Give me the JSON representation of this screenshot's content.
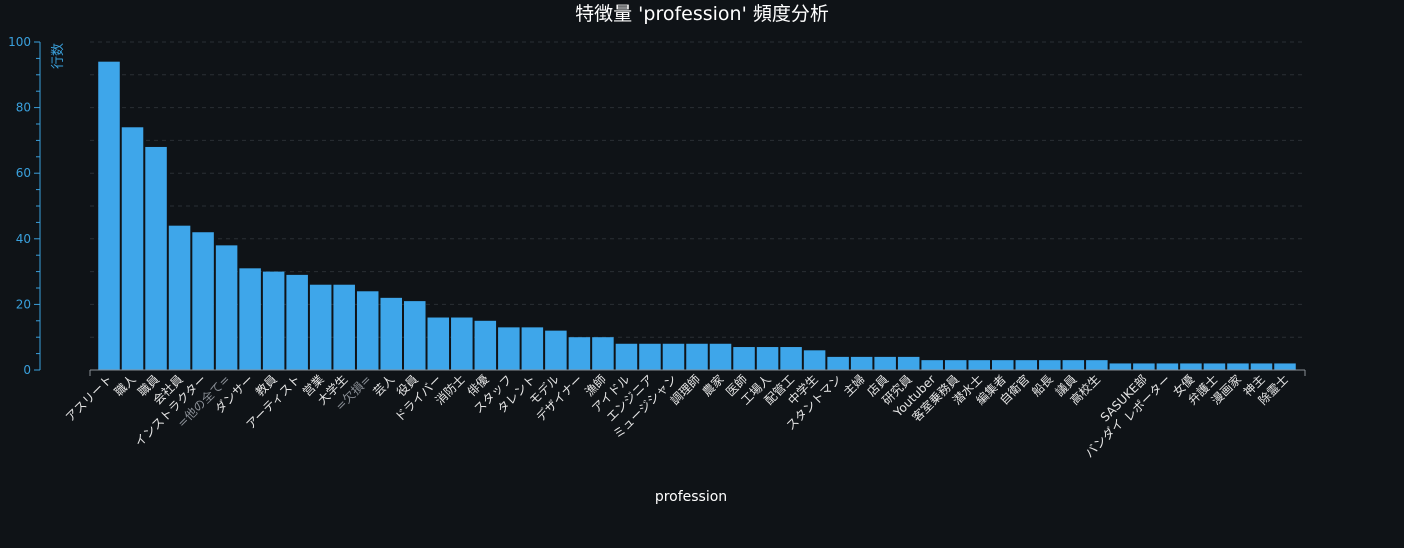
{
  "colors": {
    "background": "#0f1317",
    "bar": "#3ea6ea",
    "axis_accent": "#3aa0dc",
    "muted_label": "#8a8f96"
  },
  "chart_data": {
    "type": "bar",
    "title": "特徴量 'profession' 頻度分析",
    "xlabel": "profession",
    "ylabel": "行数",
    "ylim": [
      0,
      100
    ],
    "yticks": [
      0,
      20,
      40,
      60,
      80,
      100
    ],
    "grid": true,
    "categories": [
      "アスリート",
      "職人",
      "職員",
      "会社員",
      "インストラクター",
      "=他の全て=",
      "ダンサー",
      "教員",
      "アーティスト",
      "営業",
      "大学生",
      "=欠損=",
      "芸人",
      "役員",
      "ドライバー",
      "消防士",
      "俳優",
      "スタッフ",
      "タレント",
      "モデル",
      "デザイナー",
      "漁師",
      "アイドル",
      "エンジニア",
      "ミュージシャン",
      "調理師",
      "農家",
      "医師",
      "工場人",
      "配管工",
      "中学生",
      "スタントマン",
      "主婦",
      "店員",
      "研究員",
      "Youtuber",
      "客室乗務員",
      "潜水士",
      "編集者",
      "自衛官",
      "船長",
      "議員",
      "高校生",
      "バンダイ",
      "SASUKE部",
      "レポーター",
      "女優",
      "弁護士",
      "漫画家",
      "神主",
      "除霊士"
    ],
    "values": [
      94,
      74,
      68,
      44,
      42,
      38,
      31,
      30,
      29,
      26,
      26,
      24,
      22,
      21,
      16,
      16,
      15,
      13,
      13,
      12,
      10,
      10,
      8,
      8,
      8,
      8,
      8,
      7,
      7,
      7,
      6,
      4,
      4,
      4,
      4,
      3,
      3,
      3,
      3,
      3,
      3,
      3,
      3,
      2,
      2,
      2,
      2,
      2,
      2,
      2,
      2
    ],
    "muted_categories": [
      "=他の全て=",
      "=欠損="
    ]
  }
}
